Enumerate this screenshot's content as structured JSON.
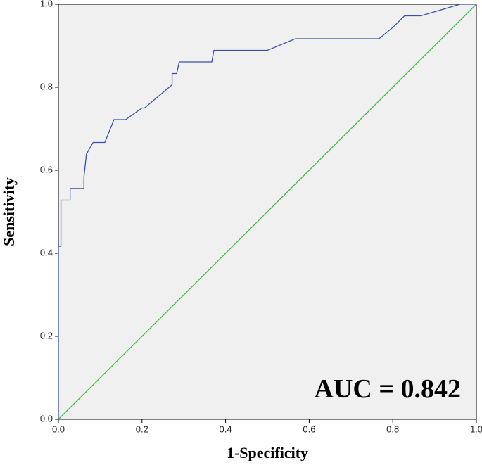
{
  "chart_data": {
    "type": "line",
    "xlabel": "1-Specificity",
    "ylabel": "Sensitivity",
    "annotation": "AUC = 0.842",
    "xlim": [
      0,
      1
    ],
    "ylim": [
      0,
      1
    ],
    "xticks": [
      {
        "value": 0,
        "label": "0.0"
      },
      0.2,
      0.4,
      0.6,
      0.8,
      {
        "value": 1,
        "label": "1.0"
      }
    ],
    "yticks": [
      {
        "value": 0,
        "label": "0.0"
      },
      0.2,
      0.4,
      0.6,
      0.8,
      {
        "value": 1,
        "label": "1.0"
      }
    ],
    "background": "#f0f0f0",
    "series": [
      {
        "color": "#3a4fa8",
        "x": [
          0,
          0,
          0.006,
          0.006,
          0.028,
          0.028,
          0.061,
          0.061,
          0.067,
          0.083,
          0.111,
          0.133,
          0.161,
          0.2,
          0.206,
          0.272,
          0.272,
          0.283,
          0.289,
          0.367,
          0.372,
          0.5,
          0.567,
          0.767,
          0.8,
          0.828,
          0.867,
          0.961,
          1
        ],
        "values": [
          0,
          0.417,
          0.417,
          0.528,
          0.528,
          0.556,
          0.556,
          0.583,
          0.639,
          0.667,
          0.667,
          0.722,
          0.722,
          0.75,
          0.75,
          0.806,
          0.833,
          0.833,
          0.861,
          0.861,
          0.889,
          0.889,
          0.917,
          0.917,
          0.944,
          0.972,
          0.972,
          1,
          1
        ]
      },
      {
        "color": "#3dbb3d",
        "x": [
          0,
          1
        ],
        "values": [
          0,
          1
        ]
      }
    ]
  }
}
